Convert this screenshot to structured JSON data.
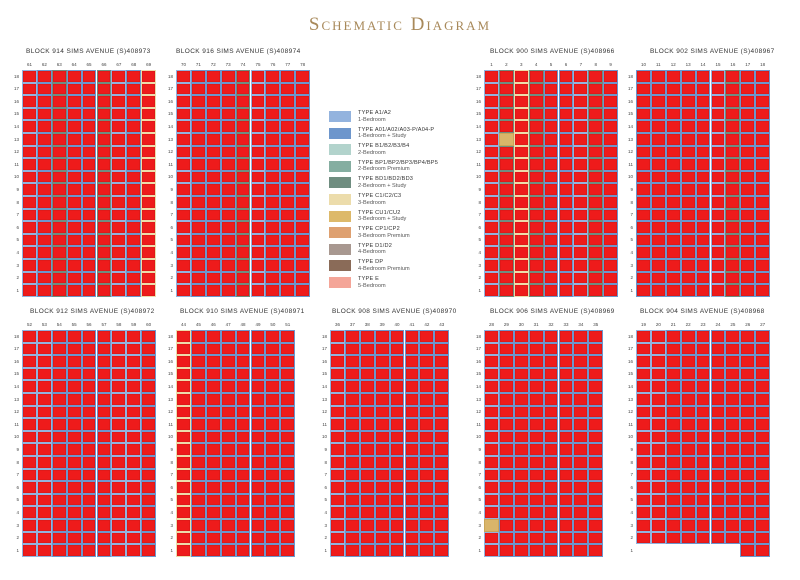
{
  "title": "Schematic Diagram",
  "legend": [
    {
      "type": "TYPE A1/A2",
      "desc": "1-Bedroom",
      "color": "#93b3de"
    },
    {
      "type": "TYPE A01/A02/A03-P/A04-P",
      "desc": "1-Bedroom + Study",
      "color": "#6d96cc"
    },
    {
      "type": "TYPE B1/B2/B3/B4",
      "desc": "2-Bedroom",
      "color": "#b2d3cc"
    },
    {
      "type": "TYPE BP1/BP2/BP3/BP4/BP5",
      "desc": "2-Bedroom Premium",
      "color": "#85aea1"
    },
    {
      "type": "TYPE BD1/BD2/BD3",
      "desc": "2-Bedroom + Study",
      "color": "#6f8d80"
    },
    {
      "type": "TYPE C1/C2/C3",
      "desc": "3-Bedroom",
      "color": "#ecdcab"
    },
    {
      "type": "TYPE CU1/CU2",
      "desc": "3-Bedroom + Study",
      "color": "#ddb96a"
    },
    {
      "type": "TYPE CP1/CP2",
      "desc": "3-Bedroom Premium",
      "color": "#dea070"
    },
    {
      "type": "TYPE D1/D2",
      "desc": "4-Bedroom",
      "color": "#a89890"
    },
    {
      "type": "TYPE DP",
      "desc": "4-Bedroom Premium",
      "color": "#8a6b58"
    },
    {
      "type": "TYPE E",
      "desc": "5-Bedroom",
      "color": "#f4a598"
    }
  ],
  "floors": [
    "18",
    "17",
    "16",
    "15",
    "14",
    "13",
    "12",
    "11",
    "10",
    "9",
    "8",
    "7",
    "6",
    "5",
    "4",
    "3",
    "2",
    "1"
  ],
  "colors": {
    "sold": "#ee1b1b",
    "grid": "#e03030"
  },
  "blocks": [
    {
      "name": "BLOCK 914 SIMS AVENUE (S)408973",
      "units": [
        "61",
        "62",
        "63",
        "64",
        "65",
        "66",
        "67",
        "68",
        "69"
      ],
      "types": [
        "A1",
        "A",
        "B",
        "A",
        "A",
        "B",
        "A1",
        "A",
        "C"
      ],
      "special": []
    },
    {
      "name": "BLOCK 916 SIMS AVENUE (S)408974",
      "units": [
        "70",
        "71",
        "72",
        "73",
        "74",
        "75",
        "76",
        "77",
        "78"
      ],
      "types": [
        "A1",
        "A",
        "A",
        "A",
        "B",
        "A1",
        "A",
        "A",
        "A"
      ],
      "special": []
    },
    {
      "name": "BLOCK 900 SIMS AVENUE (S)408966",
      "units": [
        "1",
        "2",
        "3",
        "4",
        "5",
        "6",
        "7",
        "8",
        "9"
      ],
      "types": [
        "A1",
        "B",
        "C",
        "B",
        "A",
        "A",
        "A1",
        "B",
        "A"
      ],
      "special": [
        {
          "floor": "13",
          "col": 1
        }
      ]
    },
    {
      "name": "BLOCK 902 SIMS AVENUE (S)408967",
      "units": [
        "10",
        "11",
        "12",
        "13",
        "14",
        "15",
        "16",
        "17",
        "18"
      ],
      "types": [
        "A",
        "A",
        "A",
        "A",
        "A",
        "A1",
        "B",
        "A",
        "A"
      ],
      "special": []
    },
    {
      "name": "BLOCK 912 SIMS AVENUE (S)408972",
      "units": [
        "52",
        "53",
        "54",
        "55",
        "56",
        "57",
        "58",
        "59",
        "60"
      ],
      "types": [
        "A1",
        "A1",
        "A",
        "A",
        "A",
        "A",
        "A1",
        "A1",
        "A"
      ],
      "special": []
    },
    {
      "name": "BLOCK 910 SIMS AVENUE (S)408971",
      "units": [
        "44",
        "45",
        "46",
        "47",
        "48",
        "49",
        "50",
        "51"
      ],
      "types": [
        "C",
        "A",
        "A",
        "A",
        "A",
        "A",
        "A",
        "A"
      ],
      "special": []
    },
    {
      "name": "BLOCK 908 SIMS AVENUE (S)408970",
      "units": [
        "36",
        "37",
        "38",
        "39",
        "40",
        "41",
        "42",
        "43"
      ],
      "types": [
        "A1",
        "A",
        "A",
        "A",
        "A",
        "A",
        "A",
        "A"
      ],
      "special": []
    },
    {
      "name": "BLOCK 906 SIMS AVENUE (S)408969",
      "units": [
        "28",
        "29",
        "30",
        "31",
        "32",
        "33",
        "34",
        "35"
      ],
      "types": [
        "A1",
        "A",
        "A",
        "A",
        "A",
        "A",
        "A",
        "A"
      ],
      "special": [
        {
          "floor": "3",
          "col": 0
        }
      ]
    },
    {
      "name": "BLOCK 904 SIMS AVENUE (S)408968",
      "units": [
        "19",
        "20",
        "21",
        "22",
        "23",
        "24",
        "25",
        "26",
        "27"
      ],
      "types": [
        "A1",
        "A1",
        "A",
        "A",
        "A",
        "A",
        "A",
        "A",
        "A"
      ],
      "special": [],
      "missing_first_floor": 7
    }
  ]
}
